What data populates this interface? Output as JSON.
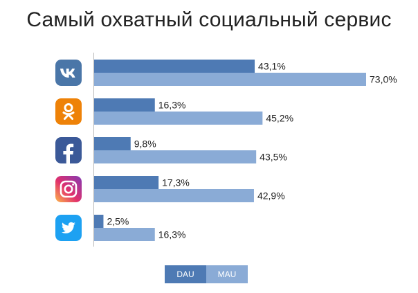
{
  "title": "Самый охватный социальный сервис",
  "colors": {
    "dau": "#4e7ab4",
    "mau": "#8aabd6",
    "axis": "#bbbbbb",
    "label": "#222222"
  },
  "chart_data": {
    "type": "bar",
    "orientation": "horizontal",
    "categories": [
      "vk",
      "odnoklassniki",
      "facebook",
      "instagram",
      "twitter"
    ],
    "category_icons": [
      "vk-icon",
      "odnoklassniki-icon",
      "facebook-icon",
      "instagram-icon",
      "twitter-icon"
    ],
    "series": [
      {
        "name": "DAU",
        "values": [
          43.1,
          16.3,
          9.8,
          17.3,
          2.5
        ],
        "labels": [
          "43,1%",
          "16,3%",
          "9,8%",
          "17,3%",
          "2,5%"
        ]
      },
      {
        "name": "MAU",
        "values": [
          73.0,
          45.2,
          43.5,
          42.9,
          16.3
        ],
        "labels": [
          "73,0%",
          "45,2%",
          "43,5%",
          "42,9%",
          "16,3%"
        ]
      }
    ],
    "xlim": [
      0,
      80
    ],
    "grid": false,
    "legend_position": "bottom"
  },
  "legend": {
    "dau_label": "DAU",
    "mau_label": "MAU"
  }
}
